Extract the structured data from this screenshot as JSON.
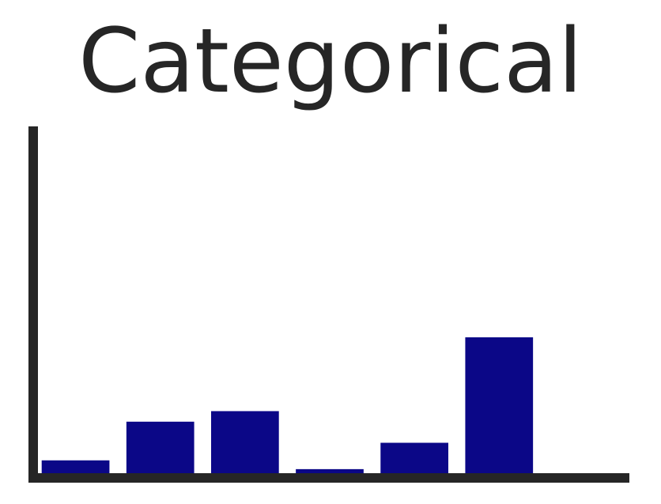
{
  "chart_data": {
    "type": "bar",
    "title": "Categorical",
    "xlabel": "",
    "ylabel": "",
    "categories": [
      "",
      "",
      "",
      "",
      "",
      "",
      ""
    ],
    "values": [
      5,
      16,
      19,
      2.5,
      10,
      40,
      0.7
    ],
    "ylim": [
      0,
      100
    ],
    "grid": false,
    "bar_color": "#0b0787",
    "axis_color": "#262626"
  }
}
